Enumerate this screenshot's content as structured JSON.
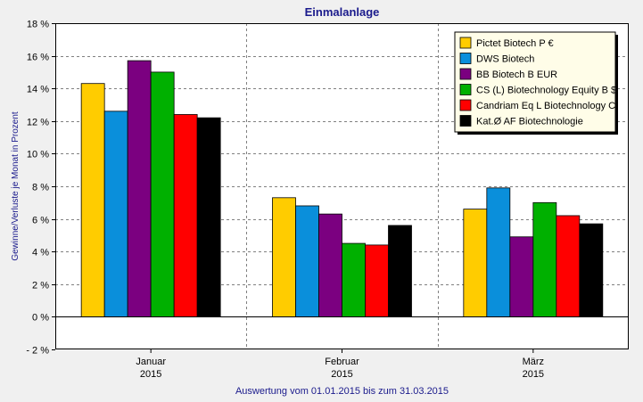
{
  "chart_data": {
    "type": "bar",
    "title": "Einmalanlage",
    "ylabel": "Gewinne/Verluste je Monat in Prozent",
    "footer": "Auswertung vom 01.01.2015 bis zum 31.03.2015",
    "ylim": [
      -2,
      18
    ],
    "yticks": [
      -2,
      0,
      2,
      4,
      6,
      8,
      10,
      12,
      14,
      16,
      18
    ],
    "ytick_labels": [
      "- 2 %",
      "0 %",
      "2 %",
      "4 %",
      "6 %",
      "8 %",
      "10 %",
      "12 %",
      "14 %",
      "16 %",
      "18 %"
    ],
    "categories": [
      {
        "month": "Januar",
        "year": "2015"
      },
      {
        "month": "Februar",
        "year": "2015"
      },
      {
        "month": "März",
        "year": "2015"
      }
    ],
    "series": [
      {
        "name": "Pictet Biotech P €",
        "color": "#ffcc00",
        "values": [
          14.3,
          7.3,
          6.6
        ]
      },
      {
        "name": "DWS Biotech",
        "color": "#0a8fdb",
        "values": [
          12.6,
          6.8,
          7.9
        ]
      },
      {
        "name": "BB Biotech B EUR",
        "color": "#7b0080",
        "values": [
          15.7,
          6.3,
          4.9
        ]
      },
      {
        "name": "CS (L) Biotechnology Equity B $",
        "color": "#00b000",
        "values": [
          15.0,
          4.5,
          7.0
        ]
      },
      {
        "name": "Candriam Eq L Biotechnology C",
        "color": "#ff0000",
        "values": [
          12.4,
          4.4,
          6.2
        ]
      },
      {
        "name": "Kat.Ø AF Biotechnologie",
        "color": "#000000",
        "values": [
          12.2,
          5.6,
          5.7
        ]
      }
    ],
    "grid": true,
    "legend_position": "top-right"
  }
}
